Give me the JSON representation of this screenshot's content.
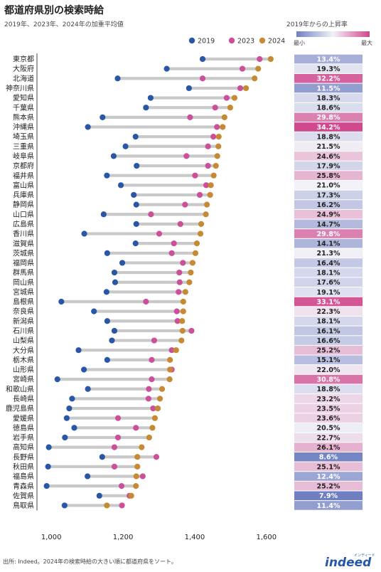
{
  "header": {
    "title": "都道府県別の検索時給",
    "subtitle": "2019年、2023年、2024年の加重平均値",
    "legend_title": "2019年からの上昇率",
    "legend_min": "最小",
    "legend_max": "最大"
  },
  "footer": {
    "source": "出所: Indeed。2024年の検索時給の大きい順に都道府県をソート。",
    "logo_text": "indeed",
    "logo_sub": "インディード"
  },
  "colors": {
    "y2019": "#2a57a5",
    "y2023": "#cc4f9a",
    "y2024": "#c68a35",
    "connector": "#c9c9c9",
    "scale_low": "#6f7fc1",
    "scale_mid": "#f2f2f8",
    "scale_high": "#d0488e"
  },
  "chart_data": {
    "type": "dumbbell",
    "title": "都道府県別の検索時給",
    "subtitle": "2019年、2023年、2024年の加重平均値",
    "xlim": [
      960,
      1640
    ],
    "xticks": [
      1000,
      1200,
      1400,
      1600
    ],
    "xtick_labels": [
      "1,000",
      "1,200",
      "1,400",
      "1,600"
    ],
    "legend_position": "top-right",
    "series_names": [
      "2019",
      "2023",
      "2024"
    ],
    "rows": [
      {
        "pref": "東京都",
        "v2019": 1422,
        "v2023": 1581,
        "v2024": 1612,
        "growth": "13.4%"
      },
      {
        "pref": "大阪府",
        "v2019": 1322,
        "v2023": 1533,
        "v2024": 1577,
        "growth": "19.3%"
      },
      {
        "pref": "北海道",
        "v2019": 1185,
        "v2023": 1422,
        "v2024": 1567,
        "growth": "32.2%"
      },
      {
        "pref": "神奈川県",
        "v2019": 1384,
        "v2023": 1527,
        "v2024": 1543,
        "growth": "11.5%"
      },
      {
        "pref": "愛知県",
        "v2019": 1277,
        "v2023": 1489,
        "v2024": 1511,
        "growth": "18.3%"
      },
      {
        "pref": "千葉県",
        "v2019": 1264,
        "v2023": 1457,
        "v2024": 1499,
        "growth": "18.6%"
      },
      {
        "pref": "熊本県",
        "v2019": 1143,
        "v2023": 1387,
        "v2024": 1483,
        "growth": "29.8%"
      },
      {
        "pref": "沖縄県",
        "v2019": 1102,
        "v2023": 1462,
        "v2024": 1478,
        "growth": "34.2%"
      },
      {
        "pref": "埼玉県",
        "v2019": 1235,
        "v2023": 1452,
        "v2024": 1467,
        "growth": "18.8%"
      },
      {
        "pref": "三重県",
        "v2019": 1207,
        "v2023": 1437,
        "v2024": 1466,
        "growth": "21.5%"
      },
      {
        "pref": "岐阜県",
        "v2019": 1174,
        "v2023": 1377,
        "v2024": 1463,
        "growth": "24.6%"
      },
      {
        "pref": "京都府",
        "v2019": 1238,
        "v2023": 1437,
        "v2024": 1459,
        "growth": "17.9%"
      },
      {
        "pref": "福井県",
        "v2019": 1155,
        "v2023": 1401,
        "v2024": 1453,
        "growth": "25.8%"
      },
      {
        "pref": "富山県",
        "v2019": 1194,
        "v2023": 1432,
        "v2024": 1445,
        "growth": "21.0%"
      },
      {
        "pref": "兵庫県",
        "v2019": 1230,
        "v2023": 1414,
        "v2024": 1443,
        "growth": "17.3%"
      },
      {
        "pref": "静岡県",
        "v2019": 1237,
        "v2023": 1373,
        "v2024": 1434,
        "growth": "16.2%"
      },
      {
        "pref": "山口県",
        "v2019": 1146,
        "v2023": 1278,
        "v2024": 1431,
        "growth": "24.9%"
      },
      {
        "pref": "広島県",
        "v2019": 1237,
        "v2023": 1360,
        "v2024": 1418,
        "growth": "14.7%"
      },
      {
        "pref": "香川県",
        "v2019": 1092,
        "v2023": 1301,
        "v2024": 1416,
        "growth": "29.8%"
      },
      {
        "pref": "滋賀県",
        "v2019": 1235,
        "v2023": 1342,
        "v2024": 1406,
        "growth": "14.1%"
      },
      {
        "pref": "茨城県",
        "v2019": 1156,
        "v2023": 1336,
        "v2024": 1402,
        "growth": "21.3%"
      },
      {
        "pref": "福岡県",
        "v2019": 1198,
        "v2023": 1367,
        "v2024": 1394,
        "growth": "16.4%"
      },
      {
        "pref": "群馬県",
        "v2019": 1176,
        "v2023": 1357,
        "v2024": 1389,
        "growth": "18.1%"
      },
      {
        "pref": "岡山県",
        "v2019": 1178,
        "v2023": 1358,
        "v2024": 1385,
        "growth": "17.6%"
      },
      {
        "pref": "宮城県",
        "v2019": 1154,
        "v2023": 1355,
        "v2024": 1374,
        "growth": "19.1%"
      },
      {
        "pref": "島根県",
        "v2019": 1028,
        "v2023": 1264,
        "v2024": 1368,
        "growth": "33.1%"
      },
      {
        "pref": "奈良県",
        "v2019": 1119,
        "v2023": 1350,
        "v2024": 1368,
        "growth": "22.3%"
      },
      {
        "pref": "新潟県",
        "v2019": 1156,
        "v2023": 1352,
        "v2024": 1365,
        "growth": "18.1%"
      },
      {
        "pref": "石川県",
        "v2019": 1176,
        "v2023": 1391,
        "v2024": 1366,
        "growth": "16.1%"
      },
      {
        "pref": "山梨県",
        "v2019": 1169,
        "v2023": 1287,
        "v2024": 1363,
        "growth": "16.6%"
      },
      {
        "pref": "大分県",
        "v2019": 1076,
        "v2023": 1336,
        "v2024": 1348,
        "growth": "25.2%"
      },
      {
        "pref": "栃木県",
        "v2019": 1156,
        "v2023": 1280,
        "v2024": 1331,
        "growth": "15.1%"
      },
      {
        "pref": "山形県",
        "v2019": 1091,
        "v2023": 1336,
        "v2024": 1331,
        "growth": "22.0%"
      },
      {
        "pref": "宮崎県",
        "v2019": 1017,
        "v2023": 1280,
        "v2024": 1330,
        "growth": "30.8%"
      },
      {
        "pref": "和歌山県",
        "v2019": 1102,
        "v2023": 1272,
        "v2024": 1309,
        "growth": "18.8%"
      },
      {
        "pref": "長崎県",
        "v2019": 1058,
        "v2023": 1271,
        "v2024": 1303,
        "growth": "23.2%"
      },
      {
        "pref": "鹿児島県",
        "v2019": 1050,
        "v2023": 1284,
        "v2024": 1297,
        "growth": "23.5%"
      },
      {
        "pref": "愛媛県",
        "v2019": 1043,
        "v2023": 1186,
        "v2024": 1289,
        "growth": "23.6%"
      },
      {
        "pref": "徳島県",
        "v2019": 1064,
        "v2023": 1236,
        "v2024": 1282,
        "growth": "20.5%"
      },
      {
        "pref": "岩手県",
        "v2019": 1038,
        "v2023": 1186,
        "v2024": 1273,
        "growth": "22.7%"
      },
      {
        "pref": "高知県",
        "v2019": 993,
        "v2023": 1176,
        "v2024": 1252,
        "growth": "26.1%"
      },
      {
        "pref": "長野県",
        "v2019": 1142,
        "v2023": 1293,
        "v2024": 1240,
        "growth": "8.6%"
      },
      {
        "pref": "秋田県",
        "v2019": 991,
        "v2023": 1176,
        "v2024": 1240,
        "growth": "25.1%"
      },
      {
        "pref": "福島県",
        "v2019": 1101,
        "v2023": 1255,
        "v2024": 1237,
        "growth": "12.4%"
      },
      {
        "pref": "青森県",
        "v2019": 987,
        "v2023": 1196,
        "v2024": 1236,
        "growth": "25.2%"
      },
      {
        "pref": "佐賀県",
        "v2019": 1134,
        "v2023": 1218,
        "v2024": 1223,
        "growth": "7.9%"
      },
      {
        "pref": "鳥取県",
        "v2019": 1037,
        "v2023": 1197,
        "v2024": 1155,
        "growth": "11.4%"
      }
    ]
  }
}
